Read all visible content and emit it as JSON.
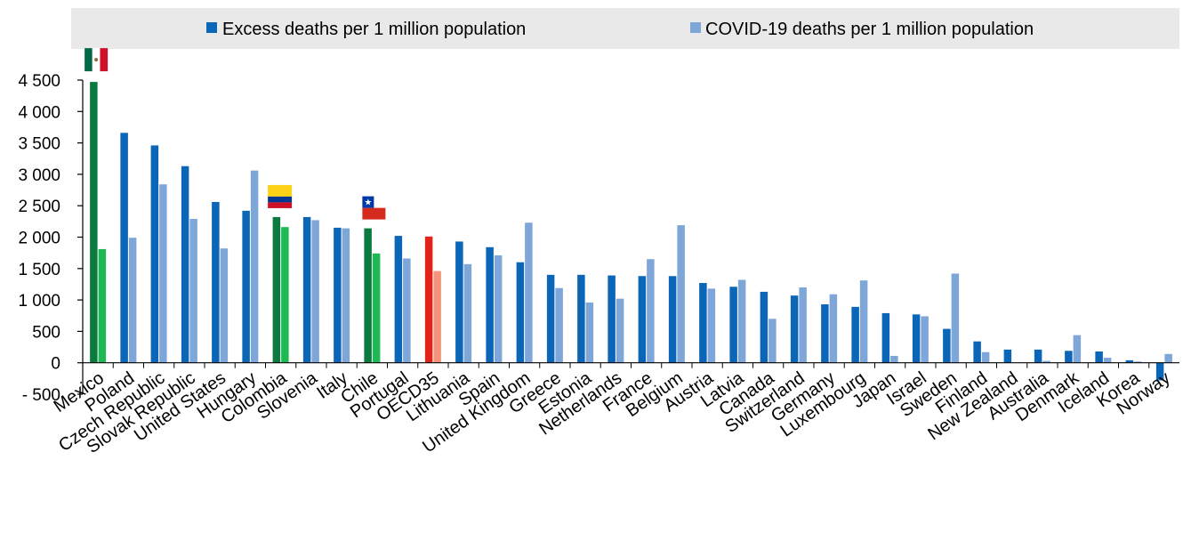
{
  "chart_data": {
    "type": "bar",
    "legend": {
      "position": "top",
      "background": "#e9e9e9"
    },
    "series": [
      {
        "name": "Excess deaths per 1 million population",
        "color": "#0b66b7",
        "values": [
          4470,
          3660,
          3460,
          3130,
          2560,
          2420,
          2320,
          2320,
          2150,
          2140,
          2020,
          2010,
          1930,
          1840,
          1600,
          1400,
          1400,
          1390,
          1380,
          1380,
          1270,
          1210,
          1130,
          1070,
          930,
          890,
          790,
          770,
          540,
          340,
          210,
          210,
          190,
          180,
          40,
          -280
        ]
      },
      {
        "name": "COVID-19 deaths per 1 million population",
        "color": "#7fa6d8",
        "values": [
          1810,
          1990,
          2840,
          2290,
          1820,
          3060,
          2160,
          2270,
          2140,
          1740,
          1660,
          1460,
          1570,
          1710,
          2230,
          1190,
          960,
          1020,
          1650,
          2190,
          1180,
          1320,
          700,
          1200,
          1090,
          1310,
          110,
          740,
          1420,
          170,
          0,
          30,
          440,
          80,
          20,
          140
        ]
      }
    ],
    "categories": [
      "Mexico",
      "Poland",
      "Czech Republic",
      "Slovak Republic",
      "United States",
      "Hungary",
      "Colombia",
      "Slovenia",
      "Italy",
      "Chile",
      "Portugal",
      "OECD35",
      "Lithuania",
      "Spain",
      "United Kingdom",
      "Greece",
      "Estonia",
      "Netherlands",
      "France",
      "Belgium",
      "Austria",
      "Latvia",
      "Canada",
      "Switzerland",
      "Germany",
      "Luxembourg",
      "Japan",
      "Israel",
      "Sweden",
      "Finland",
      "New Zealand",
      "Australia",
      "Denmark",
      "Iceland",
      "Korea",
      "Norway"
    ],
    "highlights": [
      {
        "category": "Mexico",
        "excess_color": "#0a7a3e",
        "covid_color": "#1db954",
        "flag": "mexico-flag"
      },
      {
        "category": "Colombia",
        "excess_color": "#0a7a3e",
        "covid_color": "#1db954",
        "flag": "colombia-flag"
      },
      {
        "category": "Chile",
        "excess_color": "#0a7a3e",
        "covid_color": "#1db954",
        "flag": "chile-flag"
      },
      {
        "category": "OECD35",
        "excess_color": "#e2231a",
        "covid_color": "#f4957a"
      }
    ],
    "y_ticks": [
      -500,
      0,
      500,
      1000,
      1500,
      2000,
      2500,
      3000,
      3500,
      4000,
      4500
    ],
    "y_tick_labels": [
      "- 500",
      "0",
      "500",
      "1 000",
      "1 500",
      "2 000",
      "2 500",
      "3 000",
      "3 500",
      "4 000",
      "4 500"
    ],
    "ylim": [
      -500,
      4500
    ],
    "grid": false,
    "title": "",
    "xlabel": "",
    "ylabel": ""
  }
}
